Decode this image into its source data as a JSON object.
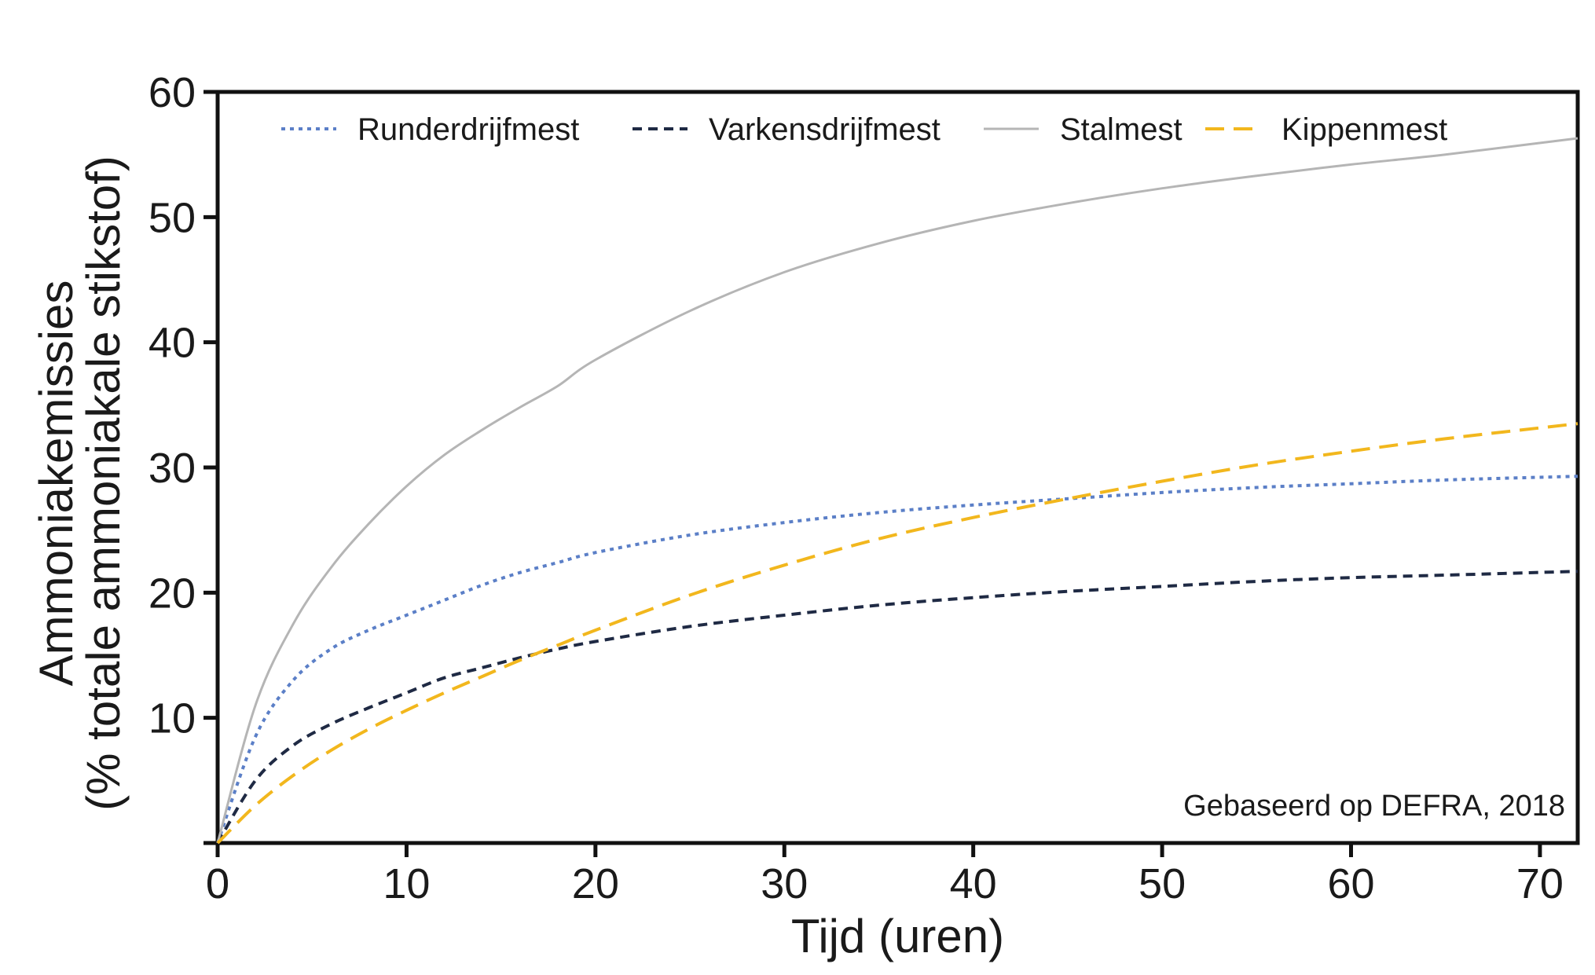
{
  "chart_data": {
    "type": "line",
    "xlabel": "Tijd (uren)",
    "ylabel_line1": "Ammoniakemissies",
    "ylabel_line2": "(% totale ammoniakale stikstof)",
    "xlim": [
      0,
      72
    ],
    "ylim": [
      0,
      60
    ],
    "xticks": [
      0,
      10,
      20,
      30,
      40,
      50,
      60,
      70
    ],
    "yticks": [
      10,
      20,
      30,
      40,
      50,
      60
    ],
    "grid": false,
    "legend_position": "top",
    "annotation": "Gebaseerd op DEFRA, 2018",
    "x": [
      0,
      2,
      4,
      6,
      8,
      10,
      12,
      14,
      16,
      18,
      20,
      25,
      30,
      35,
      40,
      45,
      50,
      55,
      60,
      65,
      72
    ],
    "series": [
      {
        "name": "Runderdrijfmest",
        "color": "#5b7fc7",
        "dash": "dotted",
        "values": [
          0,
          8.5,
          13.0,
          15.5,
          17.0,
          18.2,
          19.4,
          20.6,
          21.6,
          22.4,
          23.2,
          24.6,
          25.6,
          26.4,
          27.0,
          27.5,
          28.0,
          28.4,
          28.7,
          29.0,
          29.3
        ]
      },
      {
        "name": "Varkensdrijfmest",
        "color": "#1f2a44",
        "dash": "dashed",
        "values": [
          0,
          5.0,
          7.8,
          9.5,
          10.8,
          12.0,
          13.2,
          14.0,
          14.8,
          15.5,
          16.1,
          17.3,
          18.2,
          19.0,
          19.6,
          20.1,
          20.5,
          20.9,
          21.2,
          21.4,
          21.7
        ]
      },
      {
        "name": "Stalmest",
        "color": "#b5b5b5",
        "dash": "solid",
        "values": [
          0,
          11.0,
          17.5,
          22.0,
          25.5,
          28.5,
          31.0,
          33.0,
          34.8,
          36.5,
          38.6,
          42.5,
          45.6,
          47.9,
          49.7,
          51.1,
          52.3,
          53.3,
          54.2,
          55.0,
          56.3
        ]
      },
      {
        "name": "Kippenmest",
        "color": "#f2b71d",
        "dash": "long-dashed",
        "values": [
          0,
          3.0,
          5.4,
          7.4,
          9.1,
          10.6,
          12.0,
          13.3,
          14.6,
          15.8,
          17.0,
          19.8,
          22.2,
          24.3,
          26.0,
          27.5,
          28.9,
          30.2,
          31.3,
          32.3,
          33.5
        ]
      }
    ]
  }
}
